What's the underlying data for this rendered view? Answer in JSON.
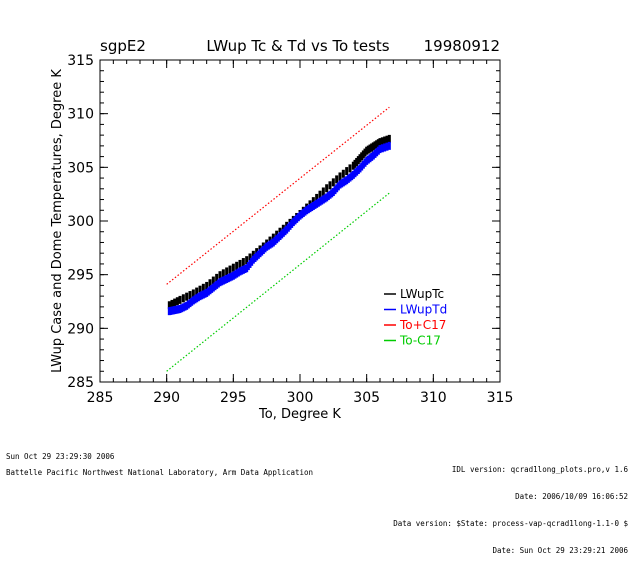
{
  "site": "sgpE2",
  "date": "19980912",
  "chart_data": {
    "type": "scatter",
    "title": "LWup Tc & Td vs To tests",
    "xlabel": "To, Degree K",
    "ylabel": "LWup Case and Dome Temperatures, Degree K",
    "xlim": [
      285,
      315
    ],
    "ylim": [
      285,
      315
    ],
    "xticks": [
      "285",
      "290",
      "295",
      "300",
      "305",
      "310",
      "315"
    ],
    "yticks": [
      "285",
      "290",
      "295",
      "300",
      "305",
      "310",
      "315"
    ],
    "legend_position": "lower-right",
    "series": [
      {
        "name": "LWupTc",
        "color": "#000000",
        "style": "markers",
        "x": [
          290.2,
          291,
          292,
          293,
          294,
          295,
          296,
          297,
          298,
          299,
          300,
          301,
          302,
          303,
          304,
          304.5,
          305,
          305.5,
          306,
          306.7
        ],
        "y": [
          291.8,
          292.3,
          292.9,
          293.6,
          294.6,
          295.3,
          296.0,
          297.0,
          298.1,
          299.2,
          300.3,
          301.5,
          302.7,
          303.8,
          304.8,
          305.5,
          306.2,
          306.6,
          307.0,
          307.3
        ]
      },
      {
        "name": "LWupTd",
        "color": "#0000ff",
        "style": "markers",
        "x": [
          290.2,
          290.6,
          291,
          291.5,
          292,
          292.5,
          293,
          293.5,
          294,
          294.5,
          295,
          295.5,
          296,
          296.5,
          297,
          297.5,
          298,
          298.5,
          299,
          299.5,
          300,
          300.5,
          301,
          301.5,
          302,
          302.5,
          303,
          303.5,
          304,
          304.5,
          305,
          305.5,
          306,
          306.7
        ],
        "y": [
          291.6,
          291.7,
          291.8,
          292.1,
          292.6,
          293.0,
          293.3,
          293.8,
          294.3,
          294.6,
          294.9,
          295.3,
          295.6,
          296.4,
          297.0,
          297.6,
          298.0,
          298.6,
          299.2,
          299.9,
          300.5,
          301.0,
          301.4,
          301.8,
          302.2,
          302.7,
          303.4,
          303.8,
          304.3,
          304.9,
          305.6,
          306.1,
          306.7,
          307.0
        ]
      },
      {
        "name": "To+C17",
        "color": "#ff0000",
        "style": "dotted-line",
        "x": [
          290.0,
          306.7
        ],
        "y": [
          294.1,
          310.6
        ]
      },
      {
        "name": "To-C17",
        "color": "#00cc00",
        "style": "dotted-line",
        "x": [
          290.0,
          306.7
        ],
        "y": [
          286.0,
          302.6
        ]
      }
    ]
  },
  "footer": {
    "left_time": "Sun Oct 29 23:29:30 2006",
    "org": "Battelle Pacific Northwest National Laboratory, Arm Data Application",
    "right_lines": [
      "IDL version: qcrad1long_plots.pro,v 1.6",
      "Date: 2006/10/09 16:06:52",
      "Data version: $State: process-vap-qcrad1long-1.1-0 $",
      "Date: Sun Oct 29 23:29:21 2006"
    ]
  }
}
